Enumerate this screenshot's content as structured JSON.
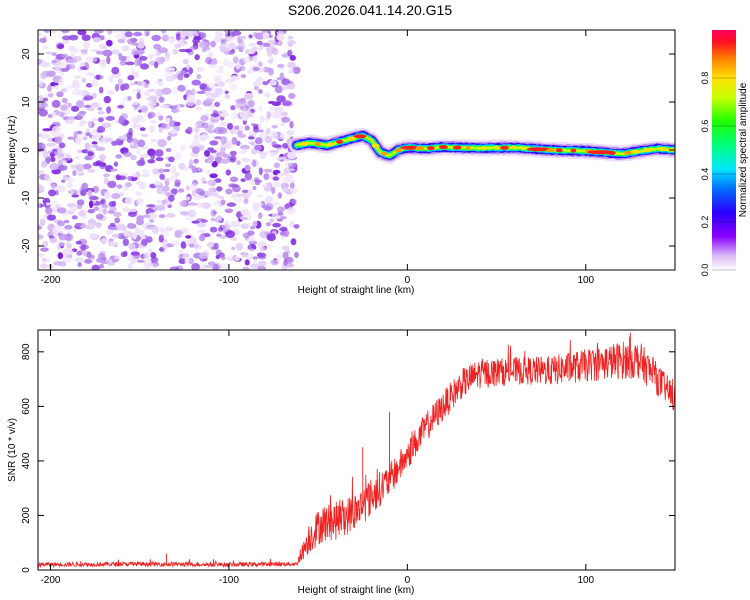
{
  "title": "S206.2026.041.14.20.G15",
  "chart_data": [
    {
      "type": "heatmap",
      "title": "S206.2026.041.14.20.G15",
      "xlabel": "Height of straight line (km)",
      "ylabel": "Frequency (Hz)",
      "xlim": [
        -207,
        150
      ],
      "ylim": [
        -25,
        25
      ],
      "xticks": [
        -200,
        -100,
        0,
        100
      ],
      "yticks": [
        -20,
        -10,
        0,
        10,
        20
      ],
      "noise_region_x": [
        -207,
        -62
      ],
      "signal_trace": {
        "x": [
          -62,
          -55,
          -45,
          -35,
          -25,
          -20,
          -15,
          -10,
          -5,
          0,
          10,
          20,
          40,
          60,
          80,
          100,
          120,
          140,
          150
        ],
        "freq": [
          1.0,
          1.5,
          1.0,
          2.0,
          3.0,
          2.0,
          -0.5,
          -1.2,
          0.0,
          0.5,
          0.3,
          0.6,
          0.4,
          0.5,
          0.0,
          -0.2,
          -0.8,
          0.3,
          0.0
        ]
      },
      "colorbar": {
        "label": "Normalized spectral amplitude",
        "range": [
          0,
          1
        ],
        "ticks": [
          "0.0",
          "0.2",
          "0.4",
          "0.6",
          "0.8"
        ],
        "tick_values": [
          0.0,
          0.2,
          0.4,
          0.6,
          0.8
        ]
      }
    },
    {
      "type": "line",
      "xlabel": "Height of straight line (km)",
      "ylabel": "SNR (10 * v/v)",
      "xlim": [
        -207,
        150
      ],
      "ylim": [
        0,
        880
      ],
      "xticks": [
        -200,
        -100,
        0,
        100
      ],
      "yticks": [
        0,
        200,
        400,
        600,
        800
      ],
      "color": "#ee2020",
      "envelope": {
        "x": [
          -207,
          -150,
          -100,
          -62,
          -55,
          -48,
          -40,
          -30,
          -20,
          -10,
          0,
          10,
          20,
          30,
          40,
          60,
          80,
          100,
          120,
          130,
          140,
          150
        ],
        "mid": [
          20,
          22,
          20,
          22,
          120,
          170,
          180,
          210,
          270,
          330,
          420,
          520,
          600,
          680,
          720,
          730,
          730,
          750,
          770,
          770,
          700,
          630
        ],
        "amp": [
          8,
          8,
          8,
          8,
          60,
          70,
          70,
          70,
          70,
          60,
          55,
          55,
          55,
          55,
          55,
          50,
          55,
          60,
          70,
          70,
          60,
          50
        ]
      },
      "spikes": [
        {
          "x": -135,
          "y": 60
        },
        {
          "x": -25,
          "y": 450
        },
        {
          "x": -10,
          "y": 580
        },
        {
          "x": 125,
          "y": 870
        }
      ]
    }
  ]
}
